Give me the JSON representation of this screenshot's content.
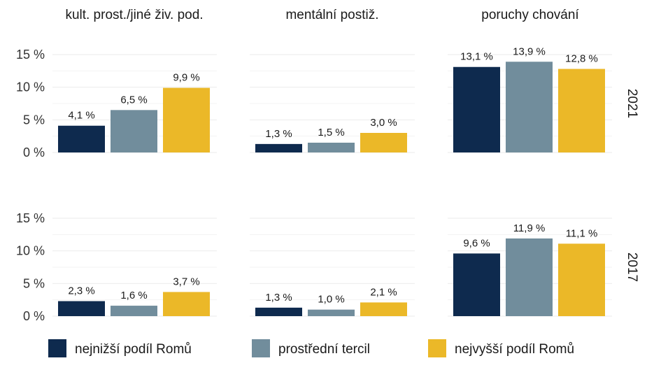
{
  "chart_data": {
    "type": "bar",
    "facets": {
      "columns": [
        "kult. prost./jiné živ. pod.",
        "mentální postiž.",
        "poruchy chování"
      ],
      "rows": [
        "2021",
        "2017"
      ]
    },
    "series": [
      {
        "name": "nejnižší podíl Romů",
        "color": "#0e2a4e"
      },
      {
        "name": "prostřední tercil",
        "color": "#718d9c"
      },
      {
        "name": "nejvyšší podíl Romů",
        "color": "#ebb828"
      }
    ],
    "values": {
      "2021": [
        [
          4.1,
          6.5,
          9.9
        ],
        [
          1.3,
          1.5,
          3.0
        ],
        [
          13.1,
          13.9,
          12.8
        ]
      ],
      "2017": [
        [
          2.3,
          1.6,
          3.7
        ],
        [
          1.3,
          1.0,
          2.1
        ],
        [
          9.6,
          11.9,
          11.1
        ]
      ]
    },
    "data_labels": {
      "2021": [
        [
          "4,1 %",
          "6,5 %",
          "9,9 %"
        ],
        [
          "1,3 %",
          "1,5 %",
          "3,0 %"
        ],
        [
          "13,1 %",
          "13,9 %",
          "12,8 %"
        ]
      ],
      "2017": [
        [
          "2,3 %",
          "1,6 %",
          "3,7 %"
        ],
        [
          "1,3 %",
          "1,0 %",
          "2,1 %"
        ],
        [
          "9,6 %",
          "11,9 %",
          "11,1 %"
        ]
      ]
    },
    "yticks": [
      0,
      5,
      10,
      15
    ],
    "ytick_labels": [
      "0 %",
      "5 %",
      "10 %",
      "15 %"
    ],
    "ylim": [
      0,
      15
    ],
    "grid": true,
    "legend_position": "bottom"
  }
}
